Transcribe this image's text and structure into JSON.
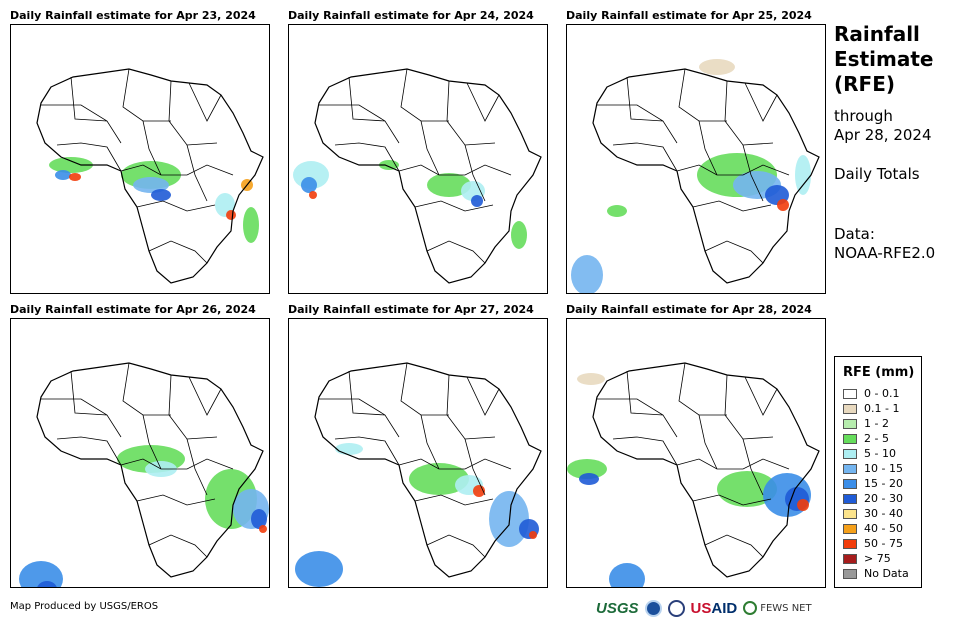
{
  "panels": [
    {
      "title": "Daily Rainfall estimate for Apr 23, 2024"
    },
    {
      "title": "Daily Rainfall estimate for Apr 24, 2024"
    },
    {
      "title": "Daily Rainfall estimate for Apr 25, 2024"
    },
    {
      "title": "Daily Rainfall estimate for Apr 26, 2024"
    },
    {
      "title": "Daily Rainfall estimate for Apr 27, 2024"
    },
    {
      "title": "Daily Rainfall estimate for Apr 28, 2024"
    }
  ],
  "sidebar": {
    "title_line1": "Rainfall",
    "title_line2": "Estimate",
    "title_line3": "(RFE)",
    "through_label": "through",
    "through_date": "Apr 28, 2024",
    "totals_label": "Daily Totals",
    "data_label": "Data:",
    "data_source": "NOAA-RFE2.0"
  },
  "legend": {
    "title": "RFE (mm)",
    "items": [
      {
        "label": "0 - 0.1",
        "color": "#ffffff"
      },
      {
        "label": "0.1 - 1",
        "color": "#e8d9bf"
      },
      {
        "label": "1 - 2",
        "color": "#b6ecae"
      },
      {
        "label": "2 - 5",
        "color": "#66dd5c"
      },
      {
        "label": "5 - 10",
        "color": "#aeeef2"
      },
      {
        "label": "10 - 15",
        "color": "#74b5f0"
      },
      {
        "label": "15 - 20",
        "color": "#3b8ee8"
      },
      {
        "label": "20 - 30",
        "color": "#1f5bd6"
      },
      {
        "label": "30 - 40",
        "color": "#fbe38c"
      },
      {
        "label": "40 - 50",
        "color": "#f5a01a"
      },
      {
        "label": "50 - 75",
        "color": "#f23d0c"
      },
      {
        "label": "> 75",
        "color": "#a61c1c"
      },
      {
        "label": "No Data",
        "color": "#999999"
      }
    ]
  },
  "footer": {
    "credit": "Map Produced by USGS/EROS",
    "logo_usgs": "USGS",
    "logo_usaid_us": "US",
    "logo_usaid_aid": "AID",
    "logo_fews": "FEWS NET"
  }
}
